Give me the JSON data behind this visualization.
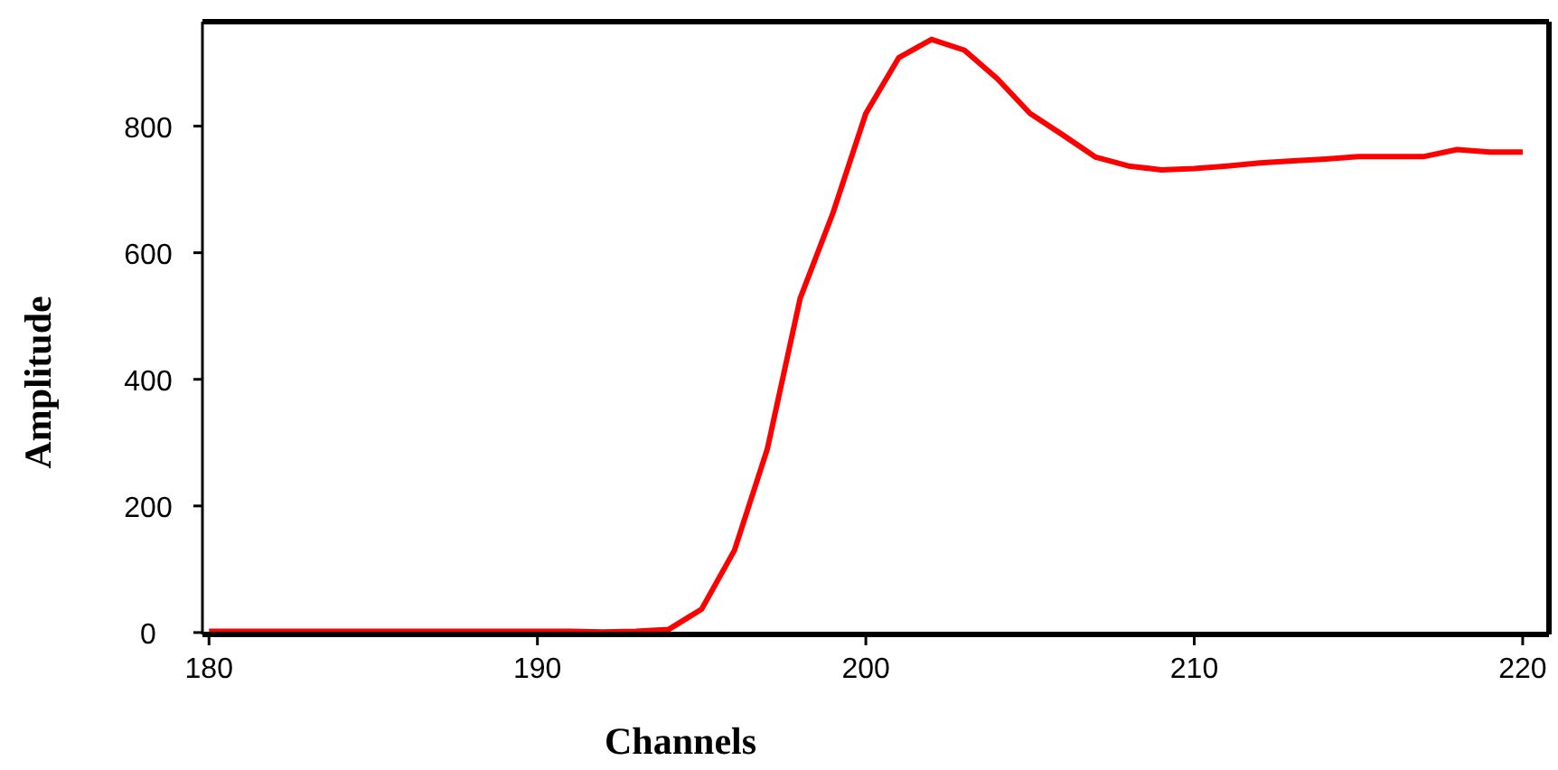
{
  "chart_data": {
    "type": "line",
    "xlabel": "Channels",
    "ylabel": "Amplitude",
    "x": [
      180,
      181,
      182,
      183,
      184,
      185,
      186,
      187,
      188,
      189,
      190,
      191,
      192,
      193,
      194,
      195,
      196,
      197,
      198,
      199,
      200,
      201,
      202,
      203,
      204,
      205,
      206,
      207,
      208,
      209,
      210,
      211,
      212,
      213,
      214,
      215,
      216,
      217,
      218,
      219,
      220
    ],
    "series": [
      {
        "color": "#ff0000",
        "values": [
          2,
          2,
          2,
          2,
          2,
          2,
          2,
          2,
          2,
          2,
          2,
          2,
          1,
          2,
          5,
          37,
          130,
          290,
          528,
          663,
          820,
          908,
          937,
          920,
          875,
          820,
          786,
          751,
          737,
          731,
          733,
          737,
          742,
          745,
          748,
          752,
          752,
          752,
          763,
          759,
          759
        ]
      }
    ],
    "xlim": [
      179.8,
      220.8
    ],
    "ylim": [
      -3,
      965
    ],
    "xticks": [
      180,
      190,
      200,
      210,
      220
    ],
    "yticks": [
      0,
      200,
      400,
      600,
      800
    ],
    "line_style": "solid"
  }
}
